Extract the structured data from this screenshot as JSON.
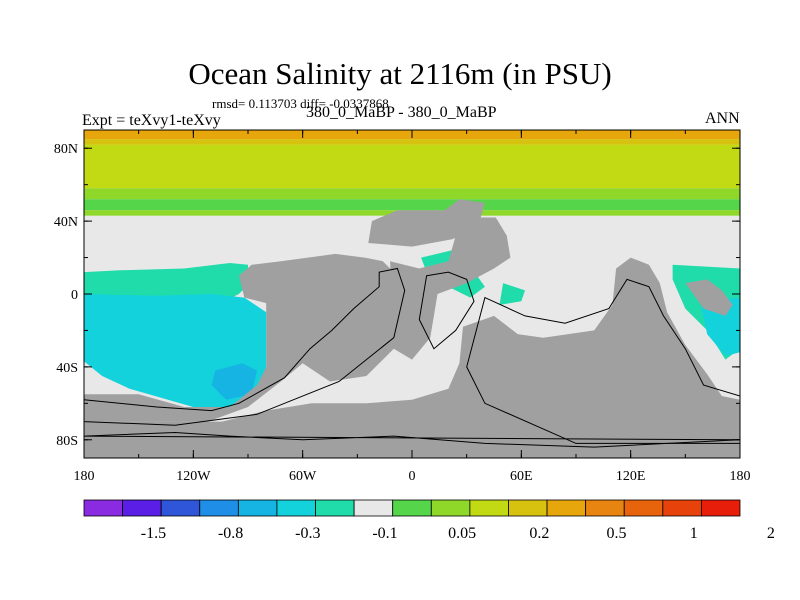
{
  "chart_data": {
    "type": "heatmap",
    "title": "Ocean Salinity at 2116m (in PSU)",
    "stats_text": "rmsd= 0.113703 diff= -0.0337868",
    "left_label": "Expt = teXvy1-teXvy",
    "center_label": "380_0_MaBP - 380_0_MaBP",
    "right_label": "ANN",
    "x_axis": {
      "range": [
        -180,
        180
      ],
      "ticks": [
        {
          "value": -180,
          "label": "180"
        },
        {
          "value": -120,
          "label": "120W"
        },
        {
          "value": -60,
          "label": "60W"
        },
        {
          "value": 0,
          "label": "0"
        },
        {
          "value": 60,
          "label": "60E"
        },
        {
          "value": 120,
          "label": "120E"
        },
        {
          "value": 180,
          "label": "180"
        }
      ]
    },
    "y_axis": {
      "range": [
        -90,
        90
      ],
      "ticks": [
        {
          "value": 80,
          "label": "80N"
        },
        {
          "value": 40,
          "label": "40N"
        },
        {
          "value": 0,
          "label": "0"
        },
        {
          "value": -40,
          "label": "40S"
        },
        {
          "value": -80,
          "label": "80S"
        }
      ]
    },
    "colorbar": {
      "colors": [
        "#8a2be2",
        "#5a1ee6",
        "#2f55d8",
        "#1e8ee6",
        "#15b4e3",
        "#14d2dc",
        "#20dcaa",
        "#e8e8e8",
        "#55d64a",
        "#8fd82a",
        "#c2da14",
        "#d8c210",
        "#e6a60c",
        "#e88410",
        "#e8640c",
        "#e6420a",
        "#e61e0a"
      ],
      "labels": [
        "-1.5",
        "-0.8",
        "-0.3",
        "-0.1",
        "0.05",
        "0.2",
        "0.5",
        "1",
        "2"
      ],
      "label_boundaries": [
        2,
        4,
        6,
        8,
        10,
        12,
        14,
        16,
        18
      ]
    },
    "colors": {
      "land": "#a0a0a0",
      "near_zero": "#e8e8e8",
      "band_orange": "#e6a60c",
      "band_gold": "#d8c210",
      "band_yellowgreen": "#c2da14",
      "band_green": "#8fd82a",
      "band_brightgreen": "#55d64a",
      "negative_teal": "#20dcaa",
      "negative_cyan": "#14d2dc",
      "negative_blue": "#15b4e3"
    }
  }
}
